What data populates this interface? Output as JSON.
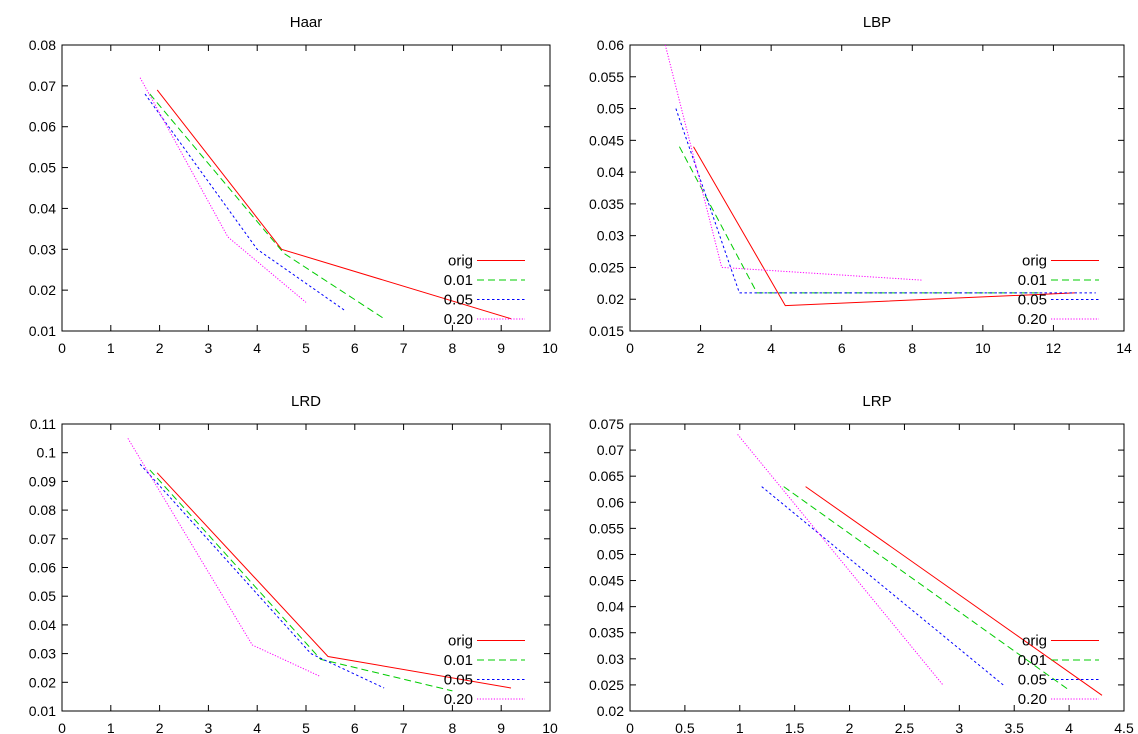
{
  "colors": {
    "frame": "#000000",
    "background": "#ffffff"
  },
  "chart_data": [
    {
      "type": "line",
      "title": "Haar",
      "xlabel": "",
      "ylabel": "",
      "xlim": [
        0,
        10
      ],
      "ylim": [
        0.01,
        0.08
      ],
      "xticks": [
        0,
        1,
        2,
        3,
        4,
        5,
        6,
        7,
        8,
        9,
        10
      ],
      "xtick_labels": [
        "0",
        "1",
        "2",
        "3",
        "4",
        "5",
        "6",
        "7",
        "8",
        "9",
        "10"
      ],
      "yticks": [
        0.01,
        0.02,
        0.03,
        0.04,
        0.05,
        0.06,
        0.07,
        0.08
      ],
      "ytick_labels": [
        "0.01",
        "0.02",
        "0.03",
        "0.04",
        "0.05",
        "0.06",
        "0.07",
        "0.08"
      ],
      "grid": false,
      "legend": "bottom-right",
      "series": [
        {
          "name": "orig",
          "color": "#ff0000",
          "dash": "solid",
          "points": [
            [
              1.95,
              0.069
            ],
            [
              4.5,
              0.03
            ],
            [
              9.2,
              0.013
            ]
          ]
        },
        {
          "name": "0.01",
          "color": "#00cc00",
          "dash": "dashed",
          "points": [
            [
              1.8,
              0.068
            ],
            [
              4.55,
              0.029
            ],
            [
              6.6,
              0.013
            ]
          ]
        },
        {
          "name": "0.05",
          "color": "#0000ff",
          "dash": "dotted",
          "points": [
            [
              1.7,
              0.068
            ],
            [
              4.0,
              0.03
            ],
            [
              5.8,
              0.015
            ]
          ]
        },
        {
          "name": "0.20",
          "color": "#ff00ff",
          "dash": "fine-dotted",
          "points": [
            [
              1.6,
              0.072
            ],
            [
              3.4,
              0.033
            ],
            [
              5.0,
              0.017
            ]
          ]
        }
      ]
    },
    {
      "type": "line",
      "title": "LBP",
      "xlabel": "",
      "ylabel": "",
      "xlim": [
        0,
        14
      ],
      "ylim": [
        0.015,
        0.06
      ],
      "xticks": [
        0,
        2,
        4,
        6,
        8,
        10,
        12,
        14
      ],
      "xtick_labels": [
        "0",
        "2",
        "4",
        "6",
        "8",
        "10",
        "12",
        "14"
      ],
      "yticks": [
        0.015,
        0.02,
        0.025,
        0.03,
        0.035,
        0.04,
        0.045,
        0.05,
        0.055,
        0.06
      ],
      "ytick_labels": [
        "0.015",
        "0.02",
        "0.025",
        "0.03",
        "0.035",
        "0.04",
        "0.045",
        "0.05",
        "0.055",
        "0.06"
      ],
      "grid": false,
      "legend": "bottom-right",
      "series": [
        {
          "name": "orig",
          "color": "#ff0000",
          "dash": "solid",
          "points": [
            [
              1.8,
              0.044
            ],
            [
              4.4,
              0.019
            ],
            [
              12.6,
              0.021
            ]
          ]
        },
        {
          "name": "0.01",
          "color": "#00cc00",
          "dash": "dashed",
          "points": [
            [
              1.4,
              0.044
            ],
            [
              3.6,
              0.021
            ],
            [
              11.7,
              0.021
            ]
          ]
        },
        {
          "name": "0.05",
          "color": "#0000ff",
          "dash": "dotted",
          "points": [
            [
              1.3,
              0.05
            ],
            [
              3.1,
              0.021
            ],
            [
              13.2,
              0.021
            ]
          ]
        },
        {
          "name": "0.20",
          "color": "#ff00ff",
          "dash": "fine-dotted",
          "points": [
            [
              1.0,
              0.06
            ],
            [
              2.6,
              0.025
            ],
            [
              8.3,
              0.023
            ]
          ]
        }
      ]
    },
    {
      "type": "line",
      "title": "LRD",
      "xlabel": "",
      "ylabel": "",
      "xlim": [
        0,
        10
      ],
      "ylim": [
        0.01,
        0.11
      ],
      "xticks": [
        0,
        1,
        2,
        3,
        4,
        5,
        6,
        7,
        8,
        9,
        10
      ],
      "xtick_labels": [
        "0",
        "1",
        "2",
        "3",
        "4",
        "5",
        "6",
        "7",
        "8",
        "9",
        "10"
      ],
      "yticks": [
        0.01,
        0.02,
        0.03,
        0.04,
        0.05,
        0.06,
        0.07,
        0.08,
        0.09,
        0.1,
        0.11
      ],
      "ytick_labels": [
        "0.01",
        "0.02",
        "0.03",
        "0.04",
        "0.05",
        "0.06",
        "0.07",
        "0.08",
        "0.09",
        "0.1",
        "0.11"
      ],
      "grid": false,
      "legend": "bottom-right",
      "series": [
        {
          "name": "orig",
          "color": "#ff0000",
          "dash": "solid",
          "points": [
            [
              1.95,
              0.093
            ],
            [
              5.45,
              0.029
            ],
            [
              9.2,
              0.018
            ]
          ]
        },
        {
          "name": "0.01",
          "color": "#00cc00",
          "dash": "dashed",
          "points": [
            [
              1.8,
              0.094
            ],
            [
              5.3,
              0.028
            ],
            [
              8.0,
              0.017
            ]
          ]
        },
        {
          "name": "0.05",
          "color": "#0000ff",
          "dash": "dotted",
          "points": [
            [
              1.6,
              0.096
            ],
            [
              5.1,
              0.03
            ],
            [
              6.6,
              0.018
            ]
          ]
        },
        {
          "name": "0.20",
          "color": "#ff00ff",
          "dash": "fine-dotted",
          "points": [
            [
              1.35,
              0.105
            ],
            [
              3.9,
              0.033
            ],
            [
              5.3,
              0.022
            ]
          ]
        }
      ]
    },
    {
      "type": "line",
      "title": "LRP",
      "xlabel": "",
      "ylabel": "",
      "xlim": [
        0,
        4.5
      ],
      "ylim": [
        0.02,
        0.075
      ],
      "xticks": [
        0,
        0.5,
        1,
        1.5,
        2,
        2.5,
        3,
        3.5,
        4,
        4.5
      ],
      "xtick_labels": [
        "0",
        "0.5",
        "1",
        "1.5",
        "2",
        "2.5",
        "3",
        "3.5",
        "4",
        "4.5"
      ],
      "yticks": [
        0.02,
        0.025,
        0.03,
        0.035,
        0.04,
        0.045,
        0.05,
        0.055,
        0.06,
        0.065,
        0.07,
        0.075
      ],
      "ytick_labels": [
        "0.02",
        "0.025",
        "0.03",
        "0.035",
        "0.04",
        "0.045",
        "0.05",
        "0.055",
        "0.06",
        "0.065",
        "0.07",
        "0.075"
      ],
      "grid": false,
      "legend": "bottom-right",
      "series": [
        {
          "name": "orig",
          "color": "#ff0000",
          "dash": "solid",
          "points": [
            [
              1.6,
              0.063
            ],
            [
              4.3,
              0.023
            ]
          ]
        },
        {
          "name": "0.01",
          "color": "#00cc00",
          "dash": "dashed",
          "points": [
            [
              1.4,
              0.063
            ],
            [
              4.0,
              0.024
            ]
          ]
        },
        {
          "name": "0.05",
          "color": "#0000ff",
          "dash": "dotted",
          "points": [
            [
              1.2,
              0.063
            ],
            [
              3.4,
              0.025
            ]
          ]
        },
        {
          "name": "0.20",
          "color": "#ff00ff",
          "dash": "fine-dotted",
          "points": [
            [
              0.98,
              0.073
            ],
            [
              2.85,
              0.025
            ]
          ]
        }
      ]
    }
  ]
}
